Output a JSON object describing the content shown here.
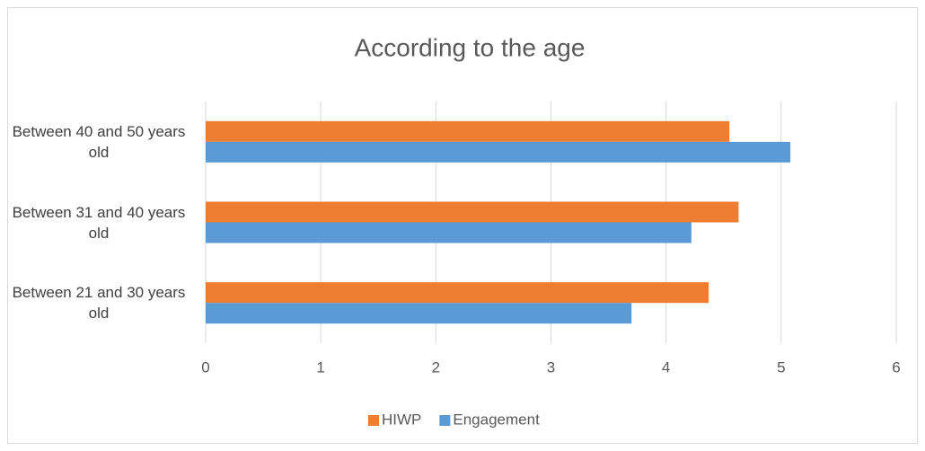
{
  "chart_data": {
    "type": "bar",
    "orientation": "horizontal",
    "title": "According to the age",
    "categories": [
      "Between 21 and 30 years old",
      "Between 31 and 40 years old",
      "Between 40 and 50 years old"
    ],
    "series": [
      {
        "name": "HIWP",
        "color": "#ed7d31",
        "values": [
          4.37,
          4.63,
          4.55
        ]
      },
      {
        "name": "Engagement",
        "color": "#5b9bd5",
        "values": [
          3.7,
          4.22,
          5.08
        ]
      }
    ],
    "xlim": [
      0,
      6
    ],
    "xticks": [
      0,
      1,
      2,
      3,
      4,
      5,
      6
    ],
    "grid": true,
    "legend": "bottom"
  }
}
